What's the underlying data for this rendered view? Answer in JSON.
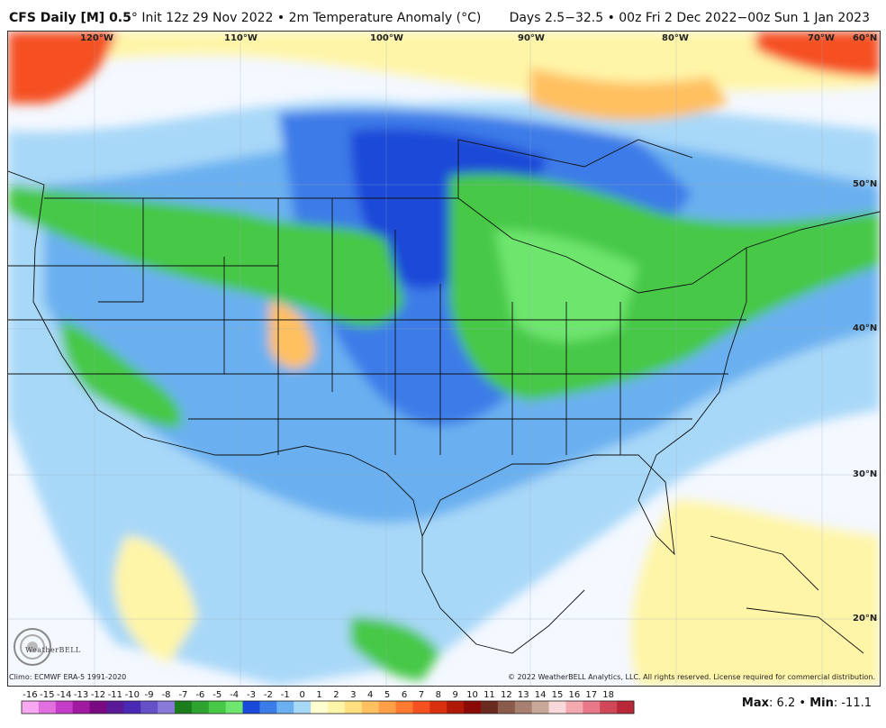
{
  "header": {
    "model": "CFS Daily [M] 0.5",
    "degree_mark": "°",
    "init": "Init 12z 29 Nov 2022",
    "bullet": "•",
    "field": "2m Temperature Anomaly (°C)",
    "valid": "Days 2.5−32.5 • 00z Fri 2 Dec 2022−00z Sun 1 Jan 2023"
  },
  "longitude_labels": [
    "120°W",
    "110°W",
    "100°W",
    "90°W",
    "80°W",
    "70°W",
    "60°N"
  ],
  "latitude_labels": [
    "50°N",
    "40°N",
    "30°N",
    "20°N"
  ],
  "footer": {
    "climo": "Climo: ECMWF ERA-5 1991-2020",
    "copyright": "© 2022 WeatherBELL Analytics, LLC. All rights reserved. License required for commercial distribution.",
    "logo_text": "WeatherBELL",
    "max_label": "Max",
    "max_value": "6.2",
    "min_label": "Min",
    "min_value": "-11.1"
  },
  "colorbar": {
    "ticks": [
      "-16",
      "-15",
      "-14",
      "-13",
      "-12",
      "-11",
      "-10",
      "-9",
      "-8",
      "-7",
      "-6",
      "-5",
      "-4",
      "-3",
      "-2",
      "-1",
      "0",
      "1",
      "2",
      "3",
      "4",
      "5",
      "6",
      "7",
      "8",
      "9",
      "10",
      "11",
      "12",
      "13",
      "14",
      "15",
      "16",
      "17",
      "18"
    ],
    "colors": [
      "#f7a8f0",
      "#e26fe0",
      "#c43cc8",
      "#a0199f",
      "#7a0a82",
      "#5a1a96",
      "#4a2ab4",
      "#6650c8",
      "#8a7ad8",
      "#1b7d1b",
      "#2fa32f",
      "#47c847",
      "#6ee66e",
      "#1a48d8",
      "#3c7ce8",
      "#6ab0f0",
      "#a8d8f8",
      "#ffffd0",
      "#fff5a8",
      "#ffe080",
      "#ffc060",
      "#ffa048",
      "#ff7a30",
      "#f55020",
      "#d83010",
      "#b01808",
      "#8a0a06",
      "#6a2a20",
      "#8a5a4a",
      "#a88070",
      "#c8a898",
      "#f8d8d8",
      "#f4a8b0",
      "#e87888",
      "#d04858",
      "#b82838"
    ]
  },
  "map": {
    "colors": {
      "ocean_neutral": "#f4f8ff",
      "light_blue": "#a8d8f8",
      "mid_blue": "#6ab0f0",
      "blue": "#3c7ce8",
      "deep_blue": "#1a48d8",
      "light_green": "#6ee66e",
      "green": "#47c847",
      "dark_green": "#2fa32f",
      "yellow": "#fff5a8",
      "orange": "#ffc060",
      "red": "#f55020"
    }
  }
}
